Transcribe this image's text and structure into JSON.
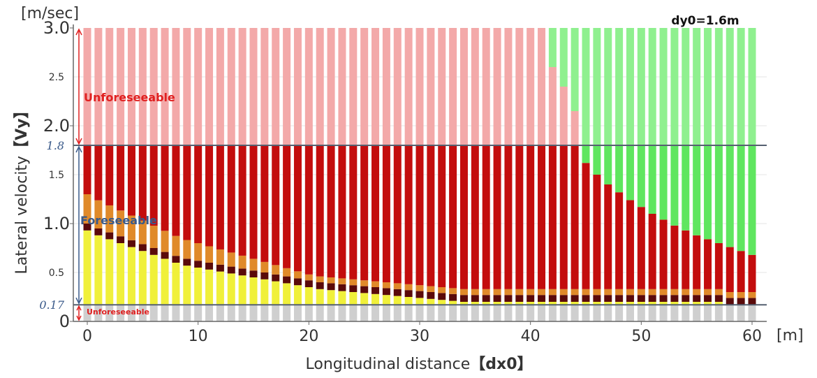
{
  "chart_data": {
    "type": "bar",
    "title": "dy0=1.6m",
    "xlabel": "Longitudinal distance",
    "xlabel_bracket": "【dx0】",
    "ylabel": "Lateral velocity",
    "ylabel_bracket": "【Vy】",
    "x_unit": "[m]",
    "y_unit": "[m/sec]",
    "xlim": [
      -1,
      60
    ],
    "ylim": [
      0,
      3.0
    ],
    "x_ticks": [
      {
        "value": 0,
        "label": "0"
      },
      {
        "value": 10,
        "label": "10"
      },
      {
        "value": 20,
        "label": "20"
      },
      {
        "value": 30,
        "label": "30"
      },
      {
        "value": 40,
        "label": "40"
      },
      {
        "value": 50,
        "label": "50"
      },
      {
        "value": 60,
        "label": "60"
      }
    ],
    "y_ticks_major": [
      {
        "value": 0,
        "label": "0"
      },
      {
        "value": 1.0,
        "label": "1.0"
      },
      {
        "value": 2.0,
        "label": "2.0"
      },
      {
        "value": 3.0,
        "label": "3.0"
      }
    ],
    "y_ticks_minor": [
      {
        "value": 0.5,
        "label": "0.5"
      },
      {
        "value": 1.5,
        "label": "1.5"
      },
      {
        "value": 2.5,
        "label": "2.5"
      }
    ],
    "thresholds": [
      {
        "value": 1.8,
        "label": "1.8"
      },
      {
        "value": 0.17,
        "label": "0.17"
      }
    ],
    "region_labels": {
      "upper": "Unforeseeable",
      "middle": "Foreseeable",
      "lower": "Unforeseeable"
    },
    "grid": true,
    "colors": {
      "unforeseeable_red": "#f3a9a9",
      "collision_red": "#c30d0d",
      "safe_green": "#8ff08f",
      "safe_green_bright": "#5fe65f",
      "dark_band": "#5a0a0a",
      "orange_band": "#e08a2a",
      "yellow": "#f0f03a",
      "gray_band": "#cfcfcf",
      "annotation_red": "#e02020",
      "annotation_blue": "#3a5a8a",
      "threshold_line": "#556070"
    },
    "x_positions": [
      0,
      1,
      2,
      3,
      4,
      5,
      6,
      7,
      8,
      9,
      10,
      11,
      12,
      13,
      14,
      15,
      16,
      17,
      18,
      19,
      20,
      21,
      22,
      23,
      24,
      25,
      26,
      27,
      28,
      29,
      30,
      31,
      32,
      33,
      34,
      35,
      36,
      37,
      38,
      39,
      40,
      41,
      42,
      43,
      44,
      45,
      46,
      47,
      48,
      49,
      50,
      51,
      52,
      53,
      54,
      55,
      56,
      57,
      58,
      59,
      60
    ],
    "series": [
      {
        "name": "yellow_upper_velocity",
        "values": [
          0.93,
          0.88,
          0.84,
          0.8,
          0.76,
          0.72,
          0.68,
          0.64,
          0.6,
          0.57,
          0.55,
          0.53,
          0.51,
          0.49,
          0.47,
          0.45,
          0.43,
          0.41,
          0.39,
          0.37,
          0.35,
          0.33,
          0.32,
          0.31,
          0.3,
          0.29,
          0.28,
          0.27,
          0.26,
          0.25,
          0.24,
          0.23,
          0.22,
          0.21,
          0.2,
          0.2,
          0.2,
          0.2,
          0.2,
          0.2,
          0.2,
          0.2,
          0.2,
          0.2,
          0.2,
          0.2,
          0.2,
          0.2,
          0.2,
          0.2,
          0.2,
          0.2,
          0.2,
          0.2,
          0.2,
          0.2,
          0.2,
          0.2,
          0.17,
          0.17,
          0.17
        ]
      },
      {
        "name": "collision_upper_velocity",
        "values": [
          1.8,
          1.8,
          1.8,
          1.8,
          1.8,
          1.8,
          1.8,
          1.8,
          1.8,
          1.8,
          1.8,
          1.8,
          1.8,
          1.8,
          1.8,
          1.8,
          1.8,
          1.8,
          1.8,
          1.8,
          1.8,
          1.8,
          1.8,
          1.8,
          1.8,
          1.8,
          1.8,
          1.8,
          1.8,
          1.8,
          1.8,
          1.8,
          1.8,
          1.8,
          1.8,
          1.8,
          1.8,
          1.8,
          1.8,
          1.8,
          1.8,
          1.8,
          1.8,
          1.8,
          1.8,
          1.62,
          1.5,
          1.4,
          1.32,
          1.24,
          1.17,
          1.1,
          1.04,
          0.98,
          0.93,
          0.88,
          0.84,
          0.8,
          0.76,
          0.72,
          0.68
        ]
      },
      {
        "name": "unforeseeable_upper_velocity",
        "values": [
          3.0,
          3.0,
          3.0,
          3.0,
          3.0,
          3.0,
          3.0,
          3.0,
          3.0,
          3.0,
          3.0,
          3.0,
          3.0,
          3.0,
          3.0,
          3.0,
          3.0,
          3.0,
          3.0,
          3.0,
          3.0,
          3.0,
          3.0,
          3.0,
          3.0,
          3.0,
          3.0,
          3.0,
          3.0,
          3.0,
          3.0,
          3.0,
          3.0,
          3.0,
          3.0,
          3.0,
          3.0,
          3.0,
          3.0,
          3.0,
          3.0,
          3.0,
          2.6,
          2.4,
          2.15,
          1.8,
          1.8,
          1.8,
          1.8,
          1.8,
          1.8,
          1.8,
          1.8,
          1.8,
          1.8,
          1.8,
          1.8,
          1.8,
          1.8,
          1.8,
          1.8
        ]
      }
    ]
  }
}
